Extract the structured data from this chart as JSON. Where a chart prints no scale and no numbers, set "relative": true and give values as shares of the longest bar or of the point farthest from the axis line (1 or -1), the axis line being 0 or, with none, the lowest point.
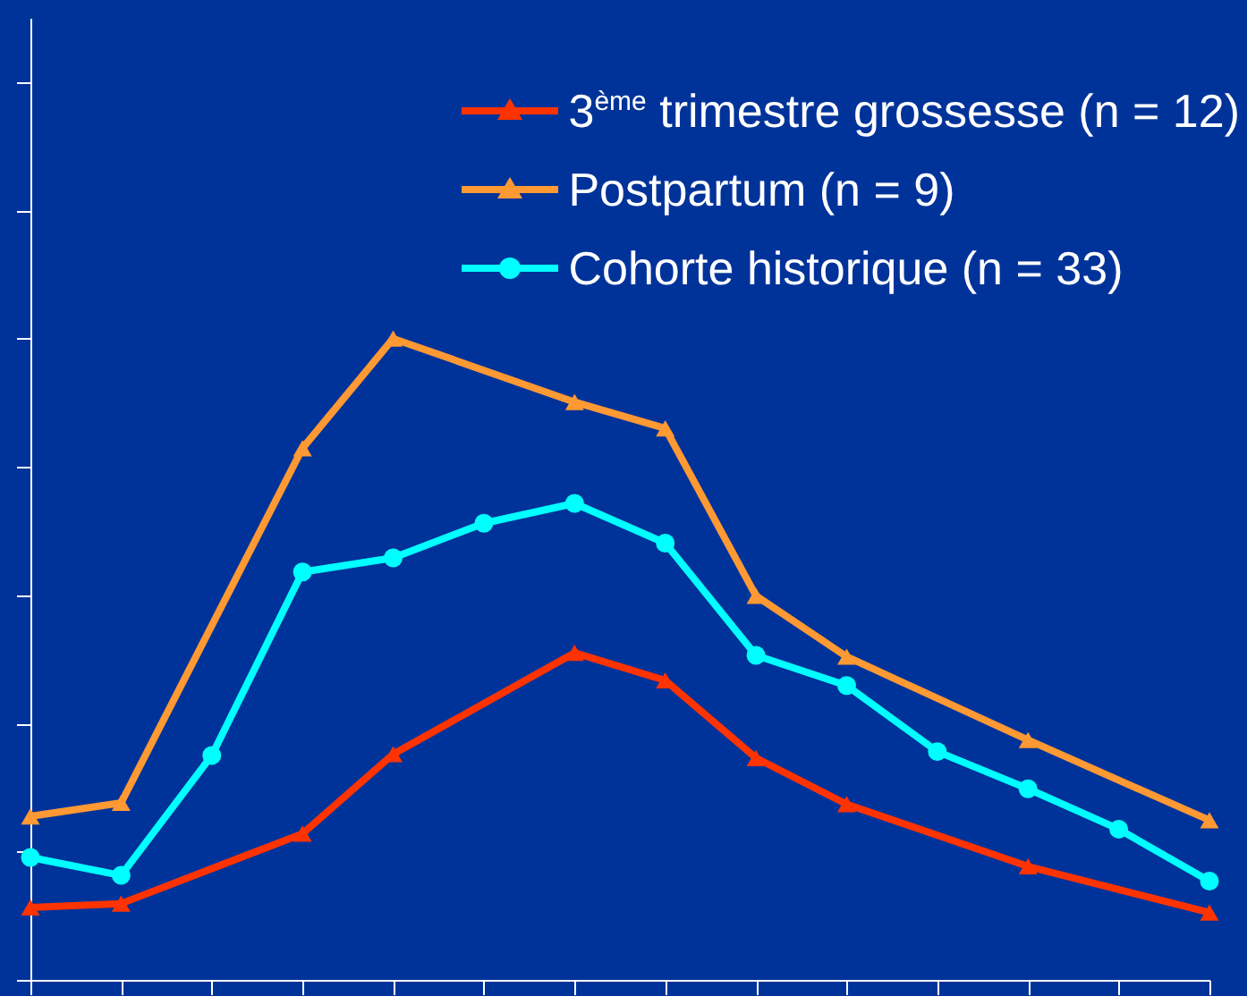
{
  "chart_data": {
    "type": "line",
    "relative": true,
    "categories": [
      null,
      null,
      null,
      null,
      null,
      null,
      null,
      null,
      null,
      null,
      null,
      null,
      null,
      null
    ],
    "legend": "top right",
    "grid": false,
    "series": [
      {
        "name": "3$^{ème}$ trimestre grossesse (n = 12)",
        "color": "#ff3300",
        "marker": "triangle",
        "values": [
          0.113,
          0.119,
          null,
          0.228,
          0.352,
          null,
          0.51,
          0.467,
          0.346,
          0.274,
          null,
          0.177,
          null,
          0.105
        ]
      },
      {
        "name": "Postpartum (n = 9)",
        "color": "#ff9933",
        "marker": "triangle",
        "values": [
          0.255,
          0.276,
          null,
          0.829,
          1,
          null,
          0.901,
          0.86,
          0.599,
          0.504,
          null,
          0.374,
          null,
          0.249
        ]
      },
      {
        "name": "Cohorte historique (n = 33)",
        "color": "#00ffff",
        "marker": "circle",
        "values": [
          0.191,
          0.163,
          0.35,
          0.636,
          0.658,
          0.712,
          0.743,
          0.681,
          0.506,
          0.459,
          0.356,
          0.298,
          0.235,
          0.154
        ]
      }
    ]
  }
}
